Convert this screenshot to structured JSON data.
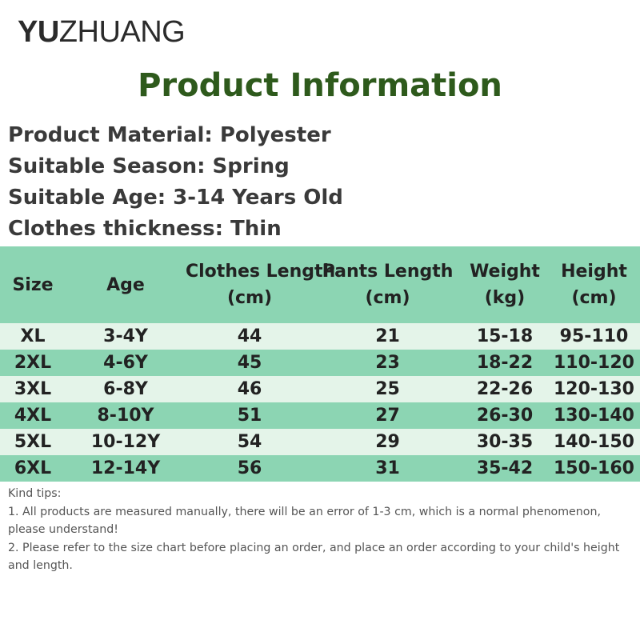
{
  "brand": {
    "bold_part": "YU",
    "thin_part": "ZHUANG"
  },
  "title": "Product Information",
  "info": [
    "Product Material: Polyester",
    "Suitable Season: Spring",
    "Suitable Age: 3-14 Years Old",
    "Clothes thickness: Thin"
  ],
  "table": {
    "headers": [
      {
        "line1": "Size",
        "line2": ""
      },
      {
        "line1": "Age",
        "line2": ""
      },
      {
        "line1": "Clothes Length",
        "line2": "(cm)"
      },
      {
        "line1": "Pants Length",
        "line2": "(cm)"
      },
      {
        "line1": "Weight",
        "line2": "(kg)"
      },
      {
        "line1": "Height",
        "line2": "(cm)"
      }
    ],
    "rows": [
      [
        "XL",
        "3-4Y",
        "44",
        "21",
        "15-18",
        "95-110"
      ],
      [
        "2XL",
        "4-6Y",
        "45",
        "23",
        "18-22",
        "110-120"
      ],
      [
        "3XL",
        "6-8Y",
        "46",
        "25",
        "22-26",
        "120-130"
      ],
      [
        "4XL",
        "8-10Y",
        "51",
        "27",
        "26-30",
        "130-140"
      ],
      [
        "5XL",
        "10-12Y",
        "54",
        "29",
        "30-35",
        "140-150"
      ],
      [
        "6XL",
        "12-14Y",
        "56",
        "31",
        "35-42",
        "150-160"
      ]
    ]
  },
  "tips": {
    "heading": "Kind tips:",
    "items": [
      "1. All products are measured manually, there will be an error of 1-3 cm, which is a normal phenomenon, please understand!",
      "2. Please refer to the size chart before placing an order, and place an order according to your child's height and length."
    ]
  },
  "colors": {
    "title": "#2e5a1c",
    "header_row": "#8cd5b3",
    "light_row": "#e4f4e9",
    "dark_row": "#8cd5b3"
  }
}
